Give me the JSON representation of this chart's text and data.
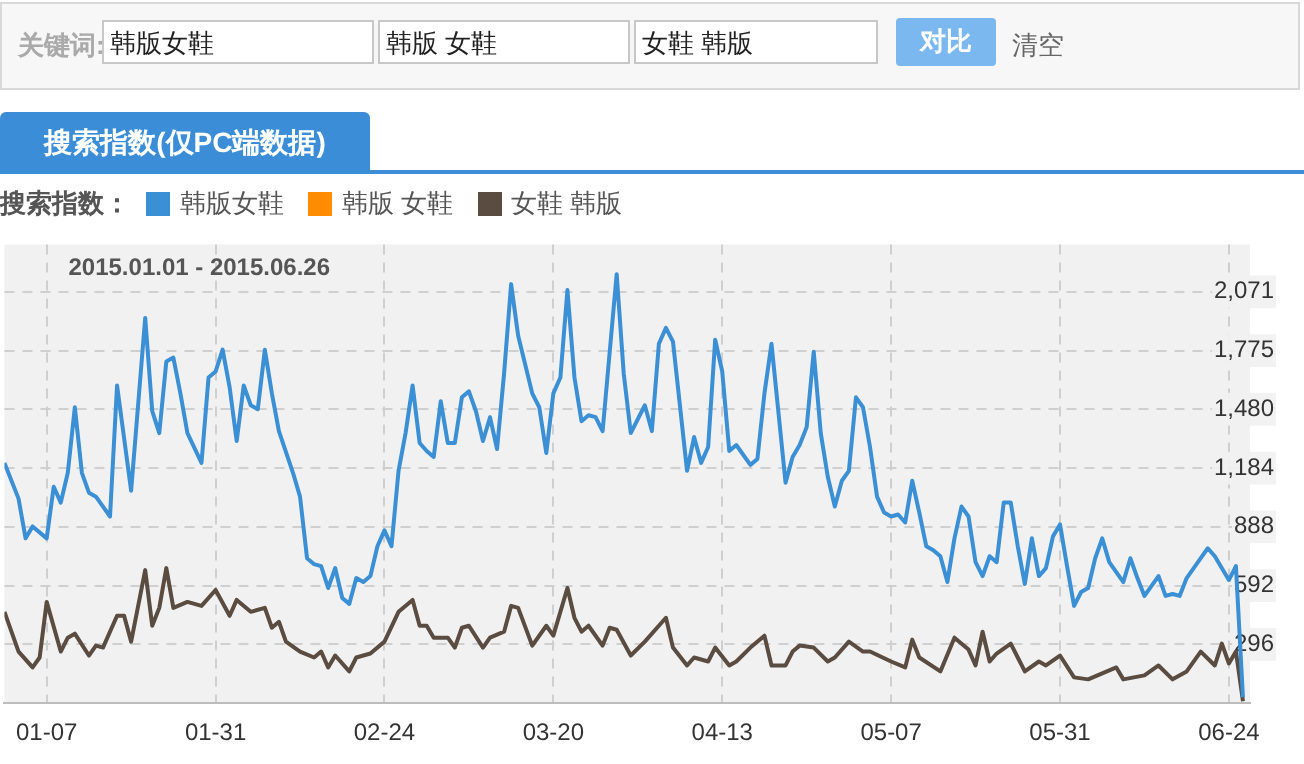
{
  "chart_data": {
    "type": "line",
    "title": "搜索指数(仅PC端数据)",
    "subtitle": "2015.01.01 - 2015.06.26",
    "legend_title": "搜索指数：",
    "annotations": [
      "关键词:",
      "韩版女鞋",
      "韩版  女鞋",
      "女鞋  韩版",
      "对比",
      "清空"
    ],
    "xlim": [
      "2015-01-01",
      "2015-06-27"
    ],
    "xticks": [
      {
        "value": "2015-01-07",
        "label": "01-07"
      },
      {
        "value": "2015-01-31",
        "label": "01-31"
      },
      {
        "value": "2015-02-24",
        "label": "02-24"
      },
      {
        "value": "2015-03-20",
        "label": "03-20"
      },
      {
        "value": "2015-04-13",
        "label": "04-13"
      },
      {
        "value": "2015-05-07",
        "label": "05-07"
      },
      {
        "value": "2015-05-31",
        "label": "05-31"
      },
      {
        "value": "2015-06-24",
        "label": "06-24"
      }
    ],
    "ylim": [
      0,
      2310
    ],
    "yticks": [
      296,
      592,
      888,
      {
        "value": 1184,
        "label": "1,184"
      },
      {
        "value": 1480,
        "label": "1,480"
      },
      {
        "value": 1775,
        "label": "1,775"
      },
      {
        "value": 2071,
        "label": "2,071"
      }
    ],
    "grid": true,
    "legend": "top left",
    "marker": "none",
    "line_style": "solid",
    "series": [
      {
        "name": "韩版女鞋",
        "color": "#3b8fd5",
        "x": [
          "2015-01-01",
          "2015-01-03",
          "2015-01-04",
          "2015-01-05",
          "2015-01-07",
          "2015-01-08",
          "2015-01-09",
          "2015-01-10",
          "2015-01-11",
          "2015-01-12",
          "2015-01-13",
          "2015-01-14",
          "2015-01-16",
          "2015-01-17",
          "2015-01-19",
          "2015-01-21",
          "2015-01-22",
          "2015-01-23",
          "2015-01-24",
          "2015-01-25",
          "2015-01-26",
          "2015-01-27",
          "2015-01-29",
          "2015-01-30",
          "2015-01-31",
          "2015-02-01",
          "2015-02-02",
          "2015-02-03",
          "2015-02-04",
          "2015-02-05",
          "2015-02-06",
          "2015-02-07",
          "2015-02-08",
          "2015-02-09",
          "2015-02-11",
          "2015-02-12",
          "2015-02-13",
          "2015-02-14",
          "2015-02-15",
          "2015-02-16",
          "2015-02-17",
          "2015-02-18",
          "2015-02-19",
          "2015-02-20",
          "2015-02-21",
          "2015-02-22",
          "2015-02-23",
          "2015-02-24",
          "2015-02-25",
          "2015-02-26",
          "2015-02-27",
          "2015-02-28",
          "2015-03-01",
          "2015-03-02",
          "2015-03-03",
          "2015-03-04",
          "2015-03-05",
          "2015-03-06",
          "2015-03-07",
          "2015-03-08",
          "2015-03-09",
          "2015-03-10",
          "2015-03-11",
          "2015-03-12",
          "2015-03-13",
          "2015-03-14",
          "2015-03-15",
          "2015-03-17",
          "2015-03-18",
          "2015-03-19",
          "2015-03-20",
          "2015-03-21",
          "2015-03-22",
          "2015-03-23",
          "2015-03-24",
          "2015-03-25",
          "2015-03-26",
          "2015-03-27",
          "2015-03-29",
          "2015-03-30",
          "2015-03-31",
          "2015-04-02",
          "2015-04-03",
          "2015-04-04",
          "2015-04-05",
          "2015-04-06",
          "2015-04-08",
          "2015-04-09",
          "2015-04-10",
          "2015-04-11",
          "2015-04-12",
          "2015-04-13",
          "2015-04-14",
          "2015-04-15",
          "2015-04-17",
          "2015-04-18",
          "2015-04-19",
          "2015-04-20",
          "2015-04-21",
          "2015-04-22",
          "2015-04-23",
          "2015-04-24",
          "2015-04-25",
          "2015-04-26",
          "2015-04-27",
          "2015-04-28",
          "2015-04-29",
          "2015-04-30",
          "2015-05-01",
          "2015-05-02",
          "2015-05-03",
          "2015-05-04",
          "2015-05-05",
          "2015-05-06",
          "2015-05-07",
          "2015-05-08",
          "2015-05-09",
          "2015-05-10",
          "2015-05-11",
          "2015-05-12",
          "2015-05-13",
          "2015-05-14",
          "2015-05-15",
          "2015-05-16",
          "2015-05-17",
          "2015-05-18",
          "2015-05-19",
          "2015-05-20",
          "2015-05-21",
          "2015-05-22",
          "2015-05-23",
          "2015-05-24",
          "2015-05-25",
          "2015-05-26",
          "2015-05-27",
          "2015-05-28",
          "2015-05-29",
          "2015-05-30",
          "2015-05-31",
          "2015-06-01",
          "2015-06-02",
          "2015-06-03",
          "2015-06-04",
          "2015-06-05",
          "2015-06-06",
          "2015-06-07",
          "2015-06-09",
          "2015-06-10",
          "2015-06-11",
          "2015-06-12",
          "2015-06-14",
          "2015-06-15",
          "2015-06-16",
          "2015-06-17",
          "2015-06-18",
          "2015-06-20",
          "2015-06-21",
          "2015-06-22",
          "2015-06-24",
          "2015-06-25",
          "2015-06-26"
        ],
        "values": [
          1210,
          1030,
          830,
          890,
          830,
          1090,
          1010,
          1160,
          1490,
          1160,
          1060,
          1040,
          940,
          1600,
          1070,
          1940,
          1470,
          1360,
          1720,
          1740,
          1560,
          1360,
          1210,
          1640,
          1670,
          1780,
          1590,
          1320,
          1600,
          1500,
          1480,
          1780,
          1560,
          1370,
          1160,
          1040,
          730,
          700,
          690,
          580,
          680,
          530,
          500,
          630,
          610,
          640,
          790,
          870,
          790,
          1170,
          1360,
          1600,
          1310,
          1270,
          1240,
          1520,
          1310,
          1310,
          1540,
          1570,
          1470,
          1320,
          1440,
          1280,
          1660,
          2110,
          1850,
          1560,
          1490,
          1260,
          1560,
          1640,
          2080,
          1640,
          1420,
          1450,
          1440,
          1370,
          2160,
          1660,
          1360,
          1500,
          1370,
          1810,
          1890,
          1820,
          1170,
          1340,
          1210,
          1290,
          1830,
          1670,
          1270,
          1300,
          1200,
          1230,
          1560,
          1810,
          1460,
          1110,
          1240,
          1300,
          1390,
          1770,
          1360,
          1140,
          990,
          1120,
          1170,
          1540,
          1490,
          1290,
          1040,
          960,
          940,
          950,
          910,
          1120,
          960,
          790,
          770,
          740,
          610,
          830,
          990,
          940,
          710,
          640,
          740,
          710,
          1010,
          1010,
          790,
          600,
          830,
          640,
          680,
          840,
          900,
          690,
          490,
          560,
          580,
          730,
          830,
          710,
          610,
          730,
          630,
          540,
          640,
          540,
          550,
          540,
          630,
          730,
          780,
          740,
          620,
          690,
          30
        ]
      },
      {
        "name": "韩版 女鞋",
        "color": "#ff8c00"
      },
      {
        "name": "女鞋 韩版",
        "color": "#5a4c40",
        "x": [
          "2015-01-01",
          "2015-01-03",
          "2015-01-05",
          "2015-01-06",
          "2015-01-07",
          "2015-01-09",
          "2015-01-10",
          "2015-01-11",
          "2015-01-13",
          "2015-01-14",
          "2015-01-15",
          "2015-01-17",
          "2015-01-18",
          "2015-01-19",
          "2015-01-21",
          "2015-01-22",
          "2015-01-23",
          "2015-01-24",
          "2015-01-25",
          "2015-01-27",
          "2015-01-29",
          "2015-01-31",
          "2015-02-02",
          "2015-02-03",
          "2015-02-05",
          "2015-02-07",
          "2015-02-08",
          "2015-02-09",
          "2015-02-10",
          "2015-02-12",
          "2015-02-14",
          "2015-02-15",
          "2015-02-16",
          "2015-02-17",
          "2015-02-19",
          "2015-02-20",
          "2015-02-22",
          "2015-02-24",
          "2015-02-26",
          "2015-02-28",
          "2015-03-01",
          "2015-03-02",
          "2015-03-03",
          "2015-03-05",
          "2015-03-06",
          "2015-03-07",
          "2015-03-08",
          "2015-03-10",
          "2015-03-11",
          "2015-03-13",
          "2015-03-14",
          "2015-03-15",
          "2015-03-17",
          "2015-03-19",
          "2015-03-20",
          "2015-03-22",
          "2015-03-23",
          "2015-03-24",
          "2015-03-25",
          "2015-03-27",
          "2015-03-28",
          "2015-03-29",
          "2015-03-31",
          "2015-04-02",
          "2015-04-05",
          "2015-04-06",
          "2015-04-08",
          "2015-04-09",
          "2015-04-11",
          "2015-04-12",
          "2015-04-14",
          "2015-04-15",
          "2015-04-17",
          "2015-04-19",
          "2015-04-20",
          "2015-04-22",
          "2015-04-23",
          "2015-04-24",
          "2015-04-26",
          "2015-04-28",
          "2015-04-29",
          "2015-05-01",
          "2015-05-03",
          "2015-05-04",
          "2015-05-07",
          "2015-05-09",
          "2015-05-10",
          "2015-05-11",
          "2015-05-14",
          "2015-05-16",
          "2015-05-18",
          "2015-05-19",
          "2015-05-20",
          "2015-05-21",
          "2015-05-22",
          "2015-05-24",
          "2015-05-26",
          "2015-05-28",
          "2015-05-29",
          "2015-05-31",
          "2015-06-02",
          "2015-06-04",
          "2015-06-08",
          "2015-06-09",
          "2015-06-12",
          "2015-06-14",
          "2015-06-16",
          "2015-06-18",
          "2015-06-20",
          "2015-06-22",
          "2015-06-23",
          "2015-06-24",
          "2015-06-25",
          "2015-06-26"
        ],
        "values": [
          460,
          260,
          180,
          230,
          510,
          260,
          330,
          350,
          240,
          290,
          280,
          440,
          440,
          310,
          670,
          390,
          480,
          680,
          480,
          510,
          490,
          570,
          440,
          520,
          460,
          480,
          380,
          410,
          310,
          260,
          230,
          260,
          180,
          240,
          160,
          230,
          250,
          310,
          460,
          520,
          390,
          390,
          330,
          330,
          280,
          380,
          390,
          280,
          330,
          360,
          490,
          480,
          290,
          390,
          340,
          580,
          430,
          360,
          390,
          290,
          380,
          370,
          240,
          310,
          430,
          280,
          190,
          230,
          210,
          280,
          190,
          210,
          280,
          340,
          190,
          190,
          260,
          290,
          280,
          210,
          230,
          310,
          260,
          260,
          210,
          180,
          320,
          230,
          160,
          330,
          270,
          190,
          360,
          210,
          250,
          300,
          160,
          210,
          190,
          240,
          130,
          120,
          180,
          120,
          140,
          190,
          120,
          160,
          260,
          190,
          300,
          200,
          260,
          10
        ]
      }
    ]
  }
}
